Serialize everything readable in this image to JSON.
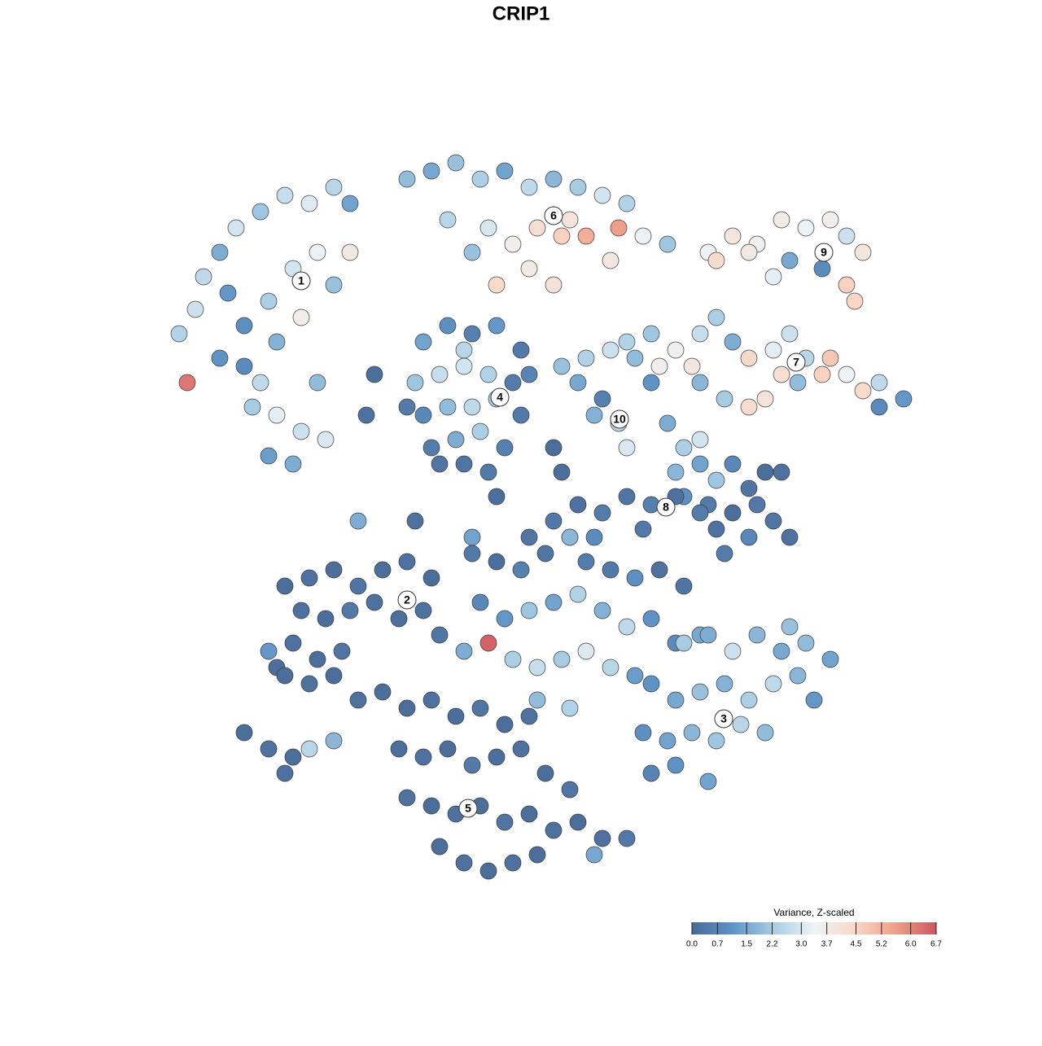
{
  "chart_data": {
    "type": "scatter",
    "title": "CRIP1",
    "xlim": [
      0,
      128
    ],
    "ylim": [
      128,
      0
    ],
    "x": [
      22,
      24,
      25,
      27,
      29,
      32,
      35,
      38,
      41,
      43,
      28,
      30,
      33,
      36,
      39,
      41,
      37,
      34,
      30,
      27,
      31,
      34,
      37,
      40,
      33,
      36,
      32,
      39,
      23,
      43,
      50,
      53,
      56,
      59,
      62,
      65,
      68,
      71,
      74,
      77,
      60,
      63,
      66,
      69,
      70,
      72,
      76,
      79,
      82,
      75,
      65,
      68,
      58,
      55,
      61,
      87,
      90,
      93,
      96,
      99,
      102,
      104,
      106,
      97,
      101,
      95,
      104,
      105,
      88,
      92,
      77,
      80,
      83,
      86,
      88,
      90,
      92,
      95,
      97,
      99,
      101,
      104,
      106,
      108,
      111,
      108,
      86,
      89,
      92,
      94,
      85,
      98,
      102,
      81,
      96,
      52,
      55,
      58,
      61,
      64,
      51,
      54,
      57,
      60,
      63,
      52,
      55,
      58,
      61,
      64,
      53,
      56,
      59,
      62,
      57,
      60,
      54,
      57,
      50,
      65,
      69,
      72,
      75,
      78,
      80,
      74,
      76,
      77,
      73,
      71,
      82,
      84,
      86,
      83,
      86,
      88,
      90,
      87,
      92,
      84,
      68,
      71,
      74,
      77,
      80,
      83,
      86,
      88,
      90,
      93,
      95,
      97,
      92,
      89,
      94,
      96,
      65,
      70,
      73,
      79,
      46,
      45,
      68,
      69,
      44,
      51,
      58,
      61,
      35,
      38,
      41,
      44,
      47,
      50,
      53,
      37,
      40,
      43,
      46,
      49,
      52,
      54,
      34,
      36,
      39,
      42,
      35,
      38,
      41,
      33,
      44,
      47,
      30,
      33,
      36,
      38,
      41,
      35,
      58,
      61,
      64,
      67,
      70,
      72,
      75,
      78,
      81,
      84,
      59,
      62,
      65,
      68,
      71,
      74,
      77,
      80,
      83,
      86,
      57,
      60,
      63,
      66,
      69,
      72,
      75,
      78,
      66,
      70,
      84,
      87,
      90,
      93,
      96,
      99,
      102,
      97,
      80,
      83,
      86,
      89,
      92,
      95,
      98,
      100,
      79,
      82,
      85,
      88,
      91,
      94,
      80,
      83,
      87,
      50,
      53,
      56,
      59,
      62,
      65,
      49,
      52,
      55,
      58,
      61,
      64,
      67,
      70,
      50,
      53,
      56,
      59,
      62,
      65,
      68,
      71,
      74,
      77,
      54,
      57,
      60,
      63,
      66,
      73
    ],
    "y": [
      41,
      38,
      34,
      31,
      28,
      26,
      24,
      25,
      23,
      25,
      36,
      40,
      37,
      33,
      31,
      35,
      39,
      42,
      45,
      44,
      50,
      51,
      53,
      54,
      56,
      57,
      47,
      47,
      47,
      31,
      22,
      21,
      20,
      22,
      21,
      23,
      22,
      23,
      24,
      25,
      28,
      30,
      28,
      29,
      27,
      29,
      28,
      29,
      30,
      32,
      33,
      35,
      31,
      27,
      35,
      31,
      29,
      30,
      27,
      28,
      27,
      29,
      31,
      32,
      33,
      34,
      35,
      37,
      32,
      31,
      42,
      41,
      43,
      41,
      39,
      42,
      44,
      43,
      41,
      44,
      46,
      46,
      48,
      47,
      49,
      50,
      47,
      49,
      50,
      49,
      45,
      47,
      44,
      45,
      46,
      42,
      40,
      41,
      40,
      43,
      47,
      46,
      45,
      46,
      47,
      51,
      50,
      50,
      49,
      51,
      55,
      54,
      53,
      55,
      57,
      58,
      57,
      43,
      50,
      46,
      45,
      44,
      43,
      44,
      47,
      49,
      52,
      55,
      51,
      47,
      52,
      55,
      54,
      58,
      57,
      59,
      57,
      62,
      60,
      61,
      64,
      62,
      63,
      61,
      62,
      61,
      63,
      65,
      63,
      62,
      64,
      66,
      66,
      68,
      58,
      58,
      66,
      66,
      66,
      65,
      46,
      51,
      55,
      58,
      64,
      64,
      66,
      61,
      72,
      71,
      70,
      72,
      70,
      69,
      71,
      75,
      76,
      75,
      74,
      76,
      75,
      78,
      82,
      79,
      81,
      80,
      83,
      84,
      83,
      80,
      86,
      85,
      90,
      92,
      93,
      92,
      91,
      95,
      68,
      69,
      70,
      68,
      66,
      69,
      70,
      71,
      70,
      72,
      74,
      76,
      75,
      74,
      73,
      75,
      77,
      76,
      79,
      78,
      80,
      79,
      81,
      82,
      81,
      80,
      82,
      83,
      86,
      87,
      79,
      78,
      80,
      78,
      80,
      79,
      81,
      77,
      84,
      86,
      85,
      84,
      86,
      84,
      83,
      86,
      90,
      91,
      90,
      91,
      89,
      90,
      95,
      94,
      96,
      87,
      86,
      88,
      87,
      89,
      88,
      92,
      93,
      92,
      94,
      93,
      92,
      95,
      97,
      98,
      99,
      100,
      99,
      101,
      100,
      102,
      101,
      103,
      103,
      104,
      106,
      107,
      106,
      105,
      105
    ],
    "values": [
      2.4,
      2.8,
      2.6,
      1.6,
      2.9,
      2.1,
      2.7,
      3.1,
      2.5,
      1.4,
      1.2,
      1.0,
      2.3,
      2.9,
      3.3,
      2.0,
      3.6,
      1.7,
      0.9,
      1.1,
      2.2,
      3.2,
      2.8,
      3.0,
      1.3,
      1.6,
      2.6,
      1.9,
      6.2,
      3.8,
      1.9,
      1.5,
      2.0,
      2.3,
      1.4,
      2.6,
      1.8,
      2.2,
      2.9,
      2.4,
      3.0,
      3.6,
      4.2,
      4.6,
      4.0,
      5.3,
      5.6,
      3.3,
      2.1,
      3.9,
      3.7,
      4.1,
      2.0,
      2.5,
      4.4,
      3.3,
      3.9,
      3.5,
      3.7,
      3.4,
      3.6,
      2.8,
      3.9,
      1.5,
      0.9,
      3.2,
      4.6,
      4.5,
      4.3,
      3.8,
      2.4,
      2.1,
      3.5,
      2.7,
      2.3,
      1.6,
      4.4,
      3.2,
      2.8,
      2.5,
      4.6,
      3.4,
      4.4,
      2.6,
      1.2,
      0.9,
      1.8,
      2.2,
      4.3,
      4.0,
      3.9,
      1.9,
      4.8,
      3.6,
      4.2,
      1.4,
      1.0,
      0.6,
      1.2,
      0.4,
      2.1,
      2.7,
      2.9,
      2.4,
      0.5,
      0.8,
      1.9,
      2.6,
      2.2,
      0.4,
      0.5,
      1.6,
      2.3,
      0.6,
      0.3,
      0.4,
      0.3,
      2.5,
      0.4,
      0.7,
      2.0,
      2.4,
      2.8,
      1.9,
      1.1,
      0.6,
      2.5,
      3.0,
      1.7,
      1.5,
      1.6,
      2.3,
      2.9,
      1.8,
      1.4,
      2.1,
      0.8,
      0.5,
      0.3,
      1.0,
      0.4,
      0.2,
      0.5,
      0.3,
      0.6,
      0.2,
      0.5,
      0.2,
      0.1,
      0.4,
      0.3,
      0.2,
      0.8,
      0.5,
      0.1,
      0.2,
      0.3,
      0.7,
      0.9,
      0.4,
      0.1,
      0.2,
      0.1,
      0.1,
      1.6,
      0.2,
      1.4,
      0.1,
      0.1,
      0.2,
      0.1,
      0.3,
      0.1,
      0.2,
      0.1,
      0.2,
      0.1,
      0.4,
      0.2,
      0.1,
      0.2,
      0.3,
      0.1,
      0.2,
      0.1,
      0.3,
      0.1,
      0.2,
      0.1,
      1.2,
      0.2,
      0.1,
      0.1,
      0.2,
      0.1,
      2.5,
      1.8,
      0.2,
      0.4,
      0.1,
      0.6,
      0.3,
      1.8,
      0.5,
      0.4,
      1.0,
      0.2,
      0.3,
      0.8,
      1.2,
      2.1,
      1.4,
      2.4,
      1.7,
      2.6,
      1.1,
      0.9,
      1.5,
      1.6,
      6.5,
      2.3,
      2.7,
      2.2,
      3.1,
      2.5,
      1.3,
      1.9,
      2.4,
      2.2,
      1.6,
      2.8,
      1.8,
      1.5,
      1.9,
      1.4,
      2.0,
      1.1,
      1.5,
      2.0,
      1.7,
      2.3,
      2.6,
      1.8,
      1.2,
      1.0,
      1.4,
      1.8,
      2.1,
      2.5,
      1.9,
      0.7,
      1.1,
      1.4,
      0.1,
      0.2,
      0.1,
      0.3,
      0.1,
      0.2,
      0.1,
      0.2,
      0.1,
      0.4,
      0.1,
      0.2,
      0.1,
      0.3,
      0.2,
      0.1,
      0.2,
      0.1,
      0.3,
      0.1,
      0.2,
      0.1,
      0.2,
      0.4,
      0.1,
      0.2,
      0.1,
      0.2,
      0.1,
      1.5
    ],
    "annotations": [
      {
        "text": "1",
        "x": 37,
        "y": 34.5
      },
      {
        "text": "6",
        "x": 68,
        "y": 26.5
      },
      {
        "text": "9",
        "x": 101.2,
        "y": 31
      },
      {
        "text": "7",
        "x": 97.8,
        "y": 44.5
      },
      {
        "text": "4",
        "x": 61.4,
        "y": 48.8
      },
      {
        "text": "10",
        "x": 76.1,
        "y": 51.5
      },
      {
        "text": "8",
        "x": 81.8,
        "y": 62.3
      },
      {
        "text": "2",
        "x": 50,
        "y": 73.7
      },
      {
        "text": "3",
        "x": 88.9,
        "y": 88.3
      },
      {
        "text": "5",
        "x": 57.5,
        "y": 99.3
      }
    ],
    "colorbar_title": "Variance, Z-scaled",
    "clim": [
      0,
      6.7
    ],
    "cticks": [
      {
        "value": 0,
        "label": "0.0"
      },
      0.7,
      1.5,
      2.2,
      {
        "value": 3,
        "label": "3.0"
      },
      3.7,
      4.5,
      5.2,
      {
        "value": 6,
        "label": "6.0"
      },
      6.7
    ],
    "colors": [
      "#4a6a96",
      "#5f93c6",
      "#a8cde4",
      "#eef3f6",
      "#f9d8c8",
      "#efa08a",
      "#cd5562"
    ]
  }
}
